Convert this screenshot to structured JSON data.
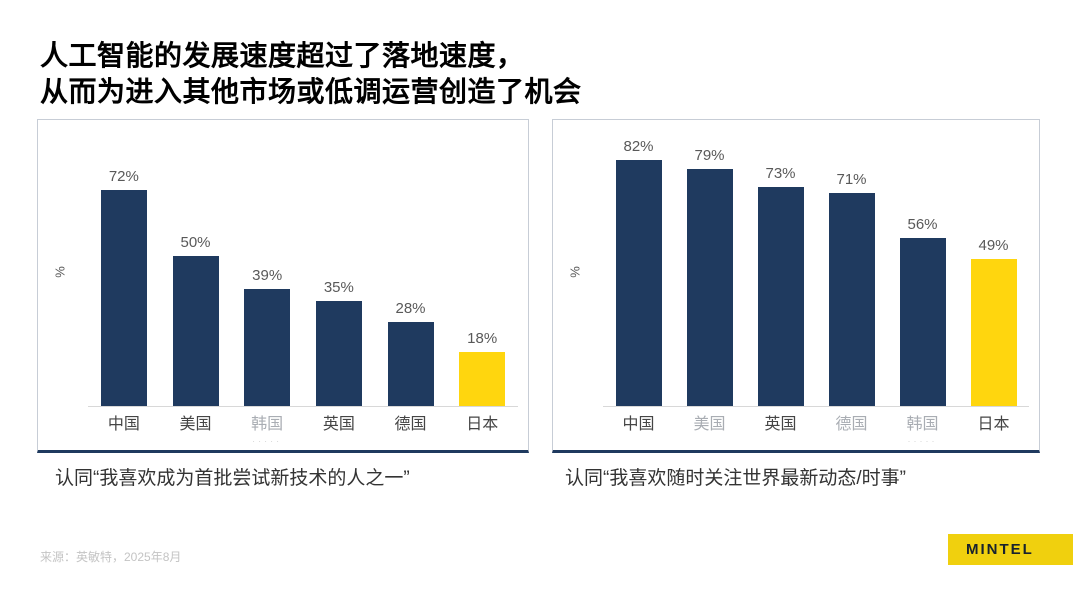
{
  "title": {
    "line1": "人工智能的发展速度超过了落地速度，",
    "line2": "从而为进入其他市场或低调运营创造了机会"
  },
  "chart_data": [
    {
      "type": "bar",
      "caption": "认同“我喜欢成为首批尝试新技术的人之一”",
      "ylabel": "%",
      "unit": "%",
      "ylim": [
        0,
        100
      ],
      "grid": false,
      "legend": "none",
      "categories": [
        "中国",
        "美国",
        "韩国",
        "英国",
        "德国",
        "日本"
      ],
      "values": [
        72,
        50,
        39,
        35,
        28,
        18
      ],
      "bar_color": "#1f3a5f",
      "highlight_color": "#ffd60e",
      "highlight_index": 5,
      "faded_label_indexes": [
        2
      ],
      "sublabels": {
        "2": "·····"
      }
    },
    {
      "type": "bar",
      "caption": "认同“我喜欢随时关注世界最新动态/时事”",
      "ylabel": "%",
      "unit": "%",
      "ylim": [
        0,
        100
      ],
      "grid": false,
      "legend": "none",
      "categories": [
        "中国",
        "美国",
        "英国",
        "德国",
        "韩国",
        "日本"
      ],
      "values": [
        82,
        79,
        73,
        71,
        56,
        49
      ],
      "bar_color": "#1f3a5f",
      "highlight_color": "#ffd60e",
      "highlight_index": 5,
      "faded_label_indexes": [
        1,
        3,
        4
      ],
      "sublabels": {
        "4": "·····"
      }
    }
  ],
  "source": "来源：英敏特，2025年8月",
  "logo": {
    "text": "MINTEL",
    "bg": "#f0d00e"
  }
}
